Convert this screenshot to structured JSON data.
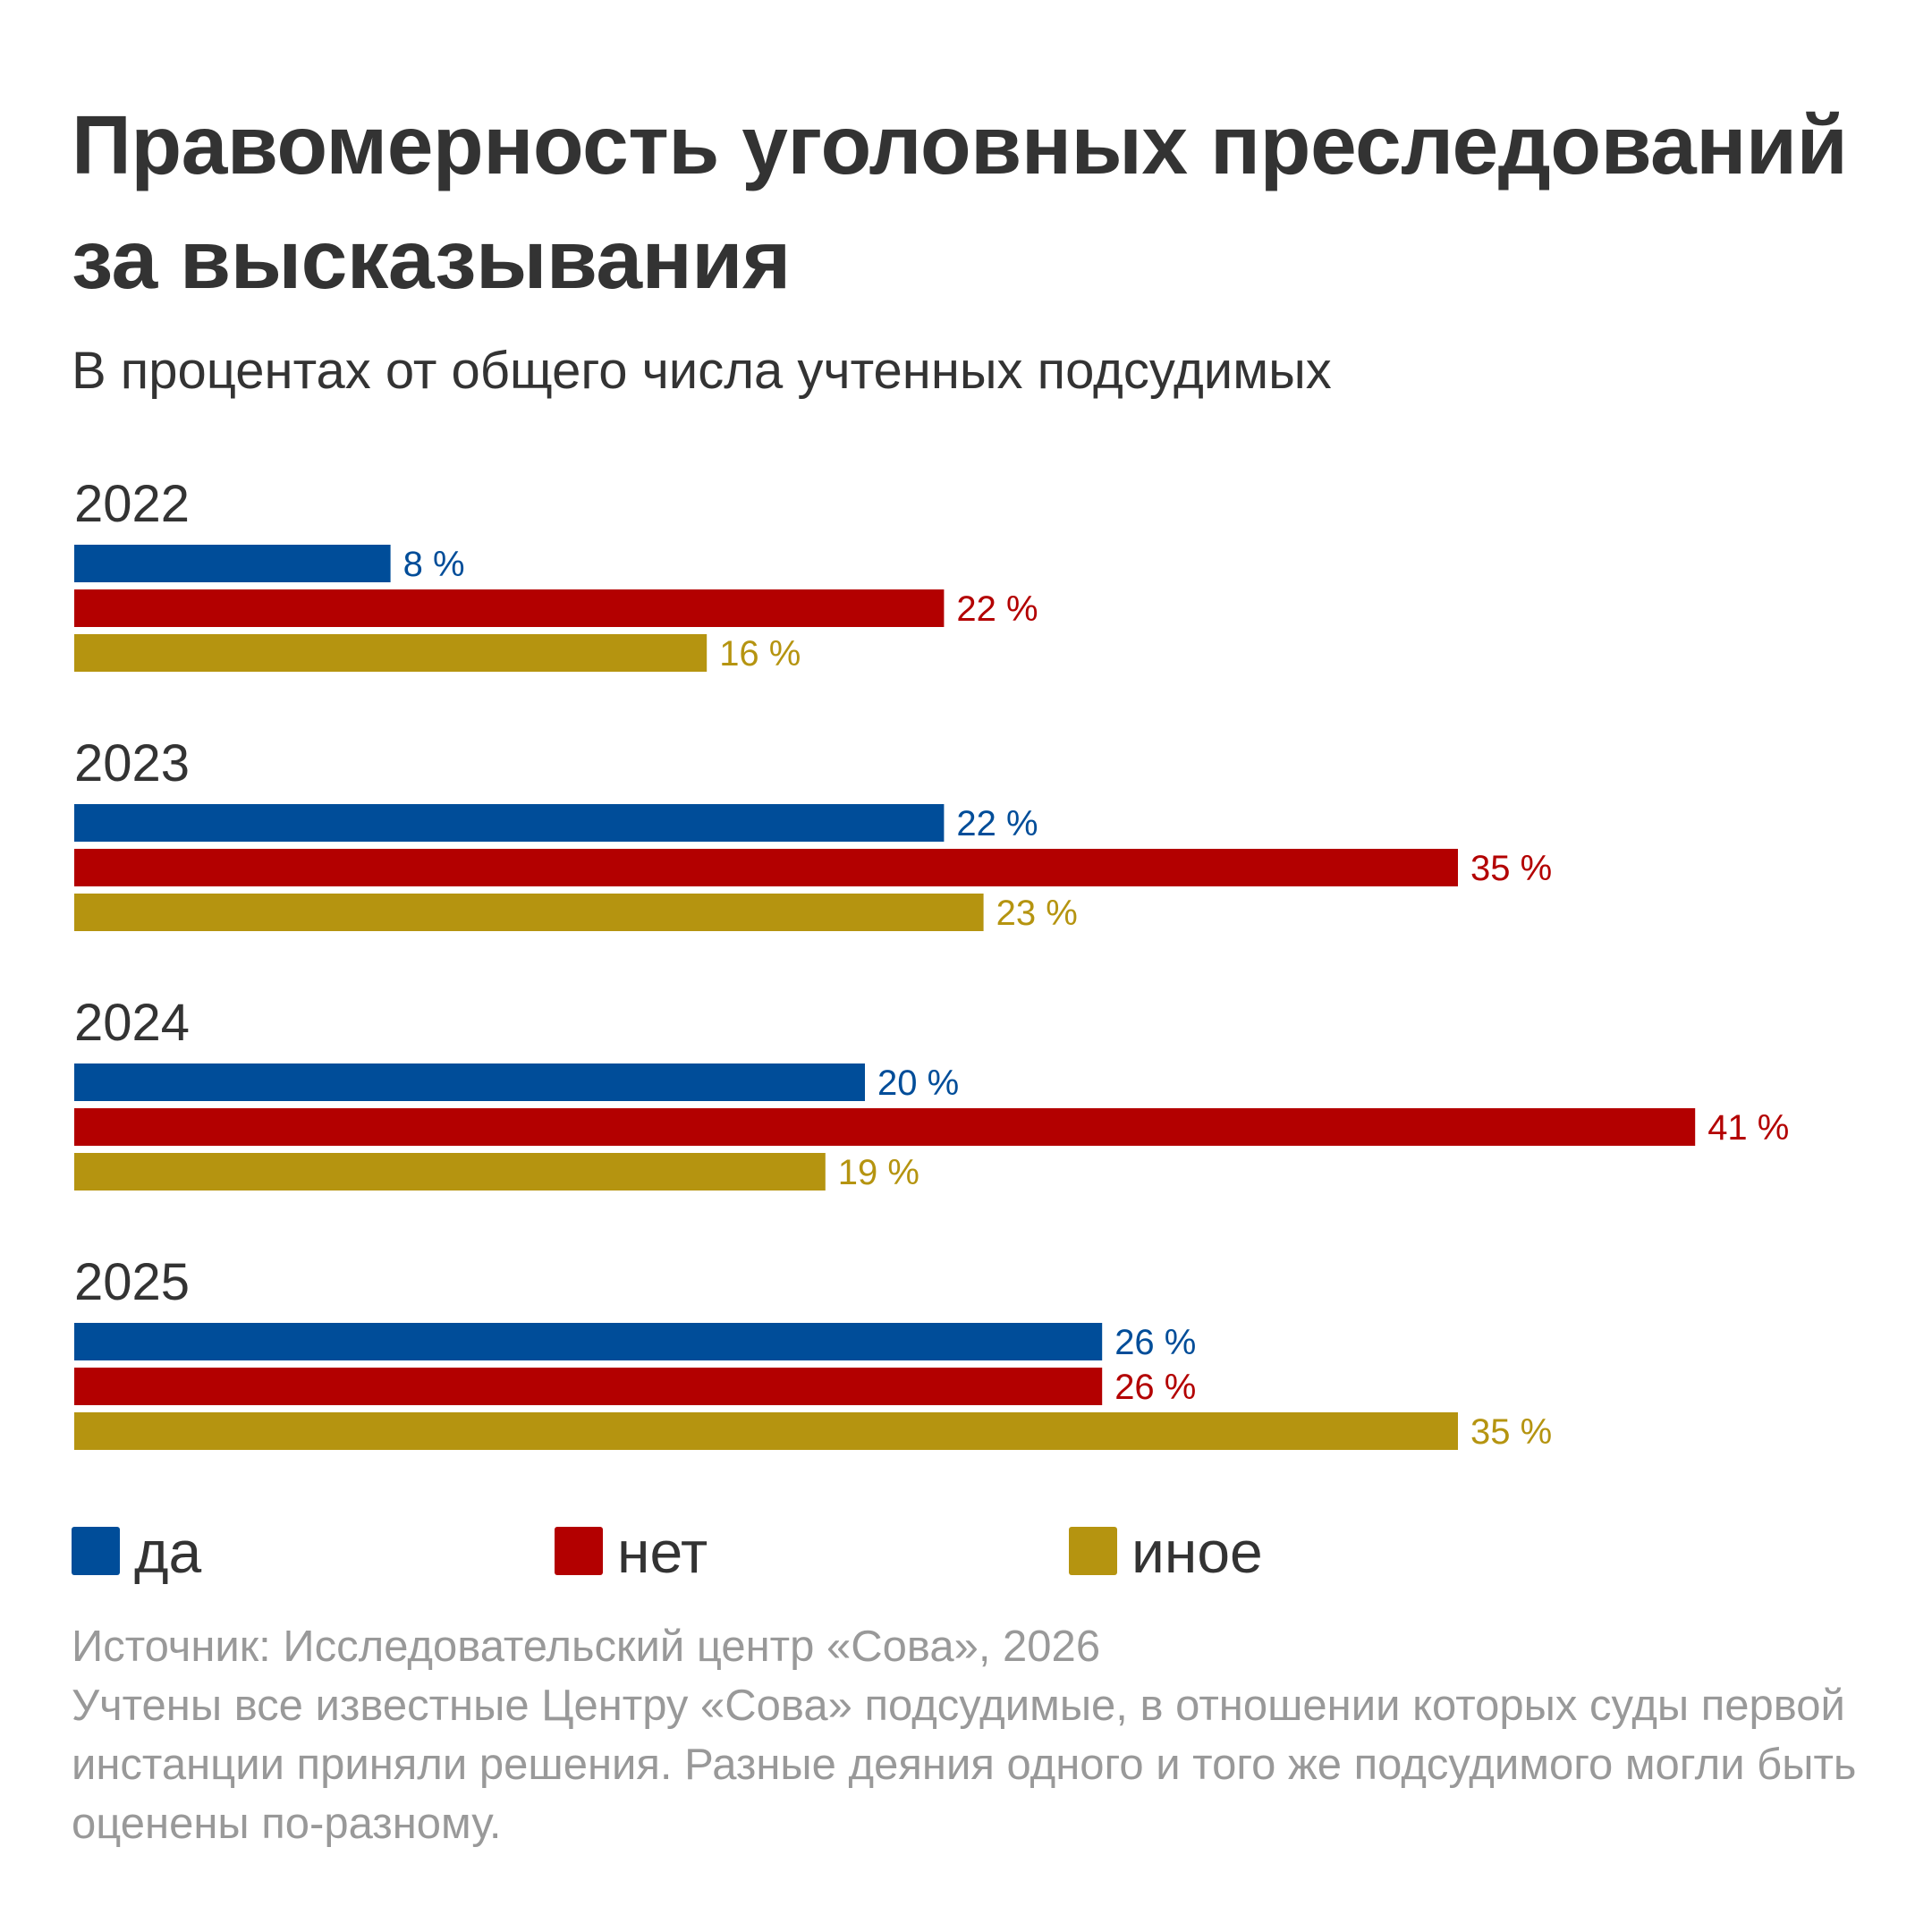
{
  "title": "Правомерность уголовных преследований за высказывания",
  "subtitle": "В процентах от общего числа учтенных подсудимых",
  "legend": [
    {
      "label": "да",
      "color": "#004d99"
    },
    {
      "label": "нет",
      "color": "#b30000"
    },
    {
      "label": "иное",
      "color": "#b59410"
    }
  ],
  "chart_data": {
    "type": "bar",
    "orientation": "horizontal",
    "grouped": true,
    "categories": [
      "2022",
      "2023",
      "2024",
      "2025"
    ],
    "series": [
      {
        "name": "да",
        "color": "#004d99",
        "values": [
          8,
          22,
          20,
          26
        ],
        "labels": [
          "8 %",
          "22 %",
          "20 %",
          "26 %"
        ]
      },
      {
        "name": "нет",
        "color": "#b30000",
        "values": [
          22,
          35,
          41,
          26
        ],
        "labels": [
          "22 %",
          "35 %",
          "41 %",
          "26 %"
        ]
      },
      {
        "name": "иное",
        "color": "#b59410",
        "values": [
          16,
          23,
          19,
          35
        ],
        "labels": [
          "16 %",
          "23 %",
          "19 %",
          "35 %"
        ]
      }
    ],
    "xlim": [
      0,
      41
    ],
    "grid": false,
    "legend_position": "bottom"
  },
  "footer": {
    "source": "Источник: Исследовательский центр «Сова», 2026",
    "note": "Учтены все известные Центру «Сова» подсудимые, в отношении которых суды первой инстанции приняли решения. Разные деяния одного и того же подсудимого могли быть оценены по-разному."
  }
}
